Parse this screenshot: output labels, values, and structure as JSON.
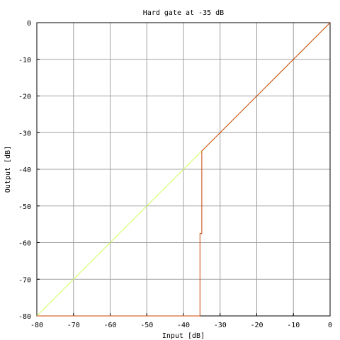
{
  "chart_data": {
    "type": "line",
    "title": "Hard gate at -35 dB",
    "xlabel": "Input [dB]",
    "ylabel": "Output [dB]",
    "xlim": [
      -80,
      0
    ],
    "ylim": [
      -80,
      0
    ],
    "grid": true,
    "x_ticks": [
      -80,
      -70,
      -60,
      -50,
      -40,
      -30,
      -20,
      -10,
      0
    ],
    "y_ticks": [
      0,
      -10,
      -20,
      -30,
      -40,
      -50,
      -60,
      -70,
      -80
    ],
    "x_tick_labels": [
      "-80",
      "-70",
      "-60",
      "-50",
      "-40",
      "-30",
      "-20",
      "-10",
      "0"
    ],
    "y_tick_labels": [
      "0",
      "-10",
      "-20",
      "-30",
      "-40",
      "-50",
      "-60",
      "-70",
      "-80"
    ],
    "series": [
      {
        "color": "#ccff66",
        "points": [
          [
            -80,
            -80
          ],
          [
            -35,
            -35
          ]
        ]
      },
      {
        "color": "#cc4400",
        "points": [
          [
            -80,
            -80
          ],
          [
            -35.5,
            -80
          ],
          [
            -35.5,
            -57.5
          ],
          [
            -35,
            -57.5
          ],
          [
            -35,
            -35
          ],
          [
            0,
            0
          ]
        ]
      }
    ]
  }
}
